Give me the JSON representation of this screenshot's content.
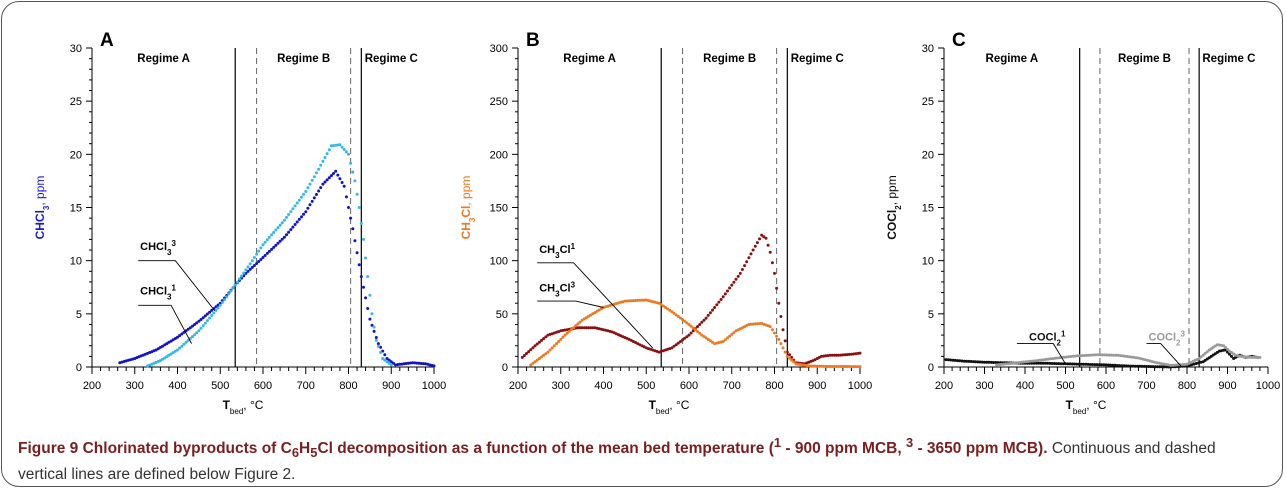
{
  "figure": {
    "caption_bold_html": "Figure 9 Chlorinated byproducts of C<sub>6</sub>H<sub>5</sub>Cl decomposition as a function of the mean bed temperature (<sup>1</sup> - 900 ppm MCB, <sup>3</sup> - 3650 ppm MCB).",
    "caption_rest": " Continuous and dashed vertical lines are defined below Figure 2."
  },
  "chart_data": [
    {
      "type": "scatter",
      "panel_letter": "A",
      "ylabel_html": "CHCl<tspan baseline-shift='sub' font-size='8'>3</tspan>, ppm",
      "ylabel_color": "#1a1ad6",
      "xlabel_html": "T<tspan baseline-shift='sub' font-size='8'>bed</tspan>, °C",
      "xlim": [
        200,
        1000
      ],
      "ylim": [
        0,
        30
      ],
      "xticks": [
        200,
        300,
        400,
        500,
        600,
        700,
        800,
        900,
        1000
      ],
      "yticks": [
        0,
        5,
        10,
        15,
        20,
        25,
        30
      ],
      "regimes": [
        "Regime A",
        "Regime B",
        "Regime C"
      ],
      "solid_lines": [
        535,
        830
      ],
      "dashed_lines": [
        585,
        805
      ],
      "series": [
        {
          "name": "CHCl3 (900 ppm MCB)",
          "color": "#1212c8",
          "points": [
            [
              265,
              0.4
            ],
            [
              300,
              0.8
            ],
            [
              350,
              1.6
            ],
            [
              400,
              2.8
            ],
            [
              450,
              4.3
            ],
            [
              500,
              6.0
            ],
            [
              535,
              7.7
            ],
            [
              560,
              8.8
            ],
            [
              600,
              10.3
            ],
            [
              650,
              12.2
            ],
            [
              700,
              14.6
            ],
            [
              740,
              17.2
            ],
            [
              770,
              18.4
            ],
            [
              790,
              17.0
            ],
            [
              810,
              13.0
            ],
            [
              830,
              8.5
            ],
            [
              850,
              4.5
            ],
            [
              870,
              2.2
            ],
            [
              890,
              0.8
            ],
            [
              910,
              0.2
            ],
            [
              930,
              0.3
            ],
            [
              950,
              0.4
            ],
            [
              980,
              0.3
            ],
            [
              1000,
              0.1
            ]
          ]
        },
        {
          "name": "CHCl3 (3650 ppm MCB)",
          "color": "#33b8ea",
          "points": [
            [
              330,
              0.1
            ],
            [
              360,
              0.6
            ],
            [
              400,
              1.6
            ],
            [
              450,
              3.4
            ],
            [
              500,
              5.8
            ],
            [
              535,
              7.7
            ],
            [
              570,
              9.7
            ],
            [
              600,
              11.5
            ],
            [
              650,
              13.8
            ],
            [
              700,
              16.5
            ],
            [
              730,
              18.6
            ],
            [
              760,
              20.8
            ],
            [
              780,
              20.9
            ],
            [
              800,
              20.0
            ],
            [
              815,
              17.5
            ],
            [
              825,
              15.0
            ],
            [
              835,
              12.0
            ],
            [
              845,
              8.5
            ],
            [
              855,
              5.0
            ],
            [
              865,
              2.5
            ],
            [
              880,
              0.8
            ],
            [
              900,
              0.2
            ]
          ]
        }
      ],
      "annotations": [
        {
          "text_html": "CHCl<tspan baseline-shift='sub' font-size='8'>3</tspan><tspan baseline-shift='super' font-size='8'>3</tspan>",
          "label_x": 308,
          "label_y": 11.0,
          "line": [
            [
              308,
              10.0
            ],
            [
              395,
              10.0
            ],
            [
              487,
              5.3
            ]
          ]
        },
        {
          "text_html": "CHCl<tspan baseline-shift='sub' font-size='8'>3</tspan><tspan baseline-shift='super' font-size='8'>1</tspan>",
          "label_x": 308,
          "label_y": 6.8,
          "line": [
            [
              308,
              5.8
            ],
            [
              385,
              5.8
            ],
            [
              433,
              2.2
            ]
          ]
        }
      ]
    },
    {
      "type": "scatter",
      "panel_letter": "B",
      "ylabel_html": "CH<tspan baseline-shift='sub' font-size='8'>3</tspan>Cl, ppm",
      "ylabel_color": "#f07820",
      "xlabel_html": "T<tspan baseline-shift='sub' font-size='8'>bed</tspan>, °C",
      "xlim": [
        200,
        1000
      ],
      "ylim": [
        0,
        300
      ],
      "xticks": [
        200,
        300,
        400,
        500,
        600,
        700,
        800,
        900,
        1000
      ],
      "yticks": [
        0,
        50,
        100,
        150,
        200,
        250,
        300
      ],
      "regimes": [
        "Regime A",
        "Regime B",
        "Regime C"
      ],
      "solid_lines": [
        535,
        830
      ],
      "dashed_lines": [
        585,
        805
      ],
      "series": [
        {
          "name": "CH3Cl (900 ppm MCB)",
          "color": "#8c1010",
          "points": [
            [
              210,
              9
            ],
            [
              240,
              20
            ],
            [
              270,
              30
            ],
            [
              300,
              34
            ],
            [
              340,
              37
            ],
            [
              380,
              37
            ],
            [
              420,
              33
            ],
            [
              460,
              26
            ],
            [
              500,
              18
            ],
            [
              530,
              14
            ],
            [
              560,
              18
            ],
            [
              600,
              30
            ],
            [
              640,
              46
            ],
            [
              680,
              66
            ],
            [
              720,
              88
            ],
            [
              750,
              110
            ],
            [
              770,
              124
            ],
            [
              780,
              121
            ],
            [
              790,
              108
            ],
            [
              800,
              88
            ],
            [
              810,
              60
            ],
            [
              820,
              35
            ],
            [
              830,
              14
            ],
            [
              850,
              4
            ],
            [
              870,
              3
            ],
            [
              890,
              6
            ],
            [
              910,
              10
            ],
            [
              930,
              11
            ],
            [
              950,
              11
            ],
            [
              980,
              12
            ],
            [
              1000,
              13
            ]
          ]
        },
        {
          "name": "CH3Cl (3650 ppm MCB)",
          "color": "#f07820",
          "points": [
            [
              230,
              2
            ],
            [
              270,
              14
            ],
            [
              310,
              30
            ],
            [
              350,
              44
            ],
            [
              400,
              56
            ],
            [
              450,
              62
            ],
            [
              500,
              63
            ],
            [
              530,
              60
            ],
            [
              560,
              52
            ],
            [
              600,
              40
            ],
            [
              630,
              30
            ],
            [
              660,
              22
            ],
            [
              680,
              24
            ],
            [
              710,
              34
            ],
            [
              740,
              40
            ],
            [
              770,
              41
            ],
            [
              790,
              38
            ],
            [
              810,
              26
            ],
            [
              830,
              10
            ],
            [
              850,
              3
            ],
            [
              880,
              1
            ],
            [
              920,
              0.5
            ],
            [
              960,
              0.5
            ],
            [
              1000,
              0.3
            ]
          ]
        }
      ],
      "annotations": [
        {
          "text_html": "CH<tspan baseline-shift='sub' font-size='8'>3</tspan>Cl<tspan baseline-shift='super' font-size='8'>1</tspan>",
          "label_x": 245,
          "label_y": 107,
          "line": [
            [
              245,
              98
            ],
            [
              330,
              98
            ],
            [
              515,
              18
            ]
          ]
        },
        {
          "text_html": "CH<tspan baseline-shift='sub' font-size='8'>3</tspan>Cl<tspan baseline-shift='super' font-size='8'>3</tspan>",
          "label_x": 245,
          "label_y": 71,
          "line": [
            [
              245,
              62
            ],
            [
              335,
              62
            ],
            [
              400,
              56
            ]
          ]
        }
      ]
    },
    {
      "type": "scatter",
      "panel_letter": "C",
      "ylabel_html": "COCl<tspan baseline-shift='sub' font-size='8'>2</tspan>, ppm",
      "ylabel_color": "#111111",
      "xlabel_html": "T<tspan baseline-shift='sub' font-size='8'>bed</tspan>, °C",
      "xlim": [
        200,
        1000
      ],
      "ylim": [
        0,
        30
      ],
      "xticks": [
        200,
        300,
        400,
        500,
        600,
        700,
        800,
        900,
        1000
      ],
      "yticks": [
        0,
        5,
        10,
        15,
        20,
        25,
        30
      ],
      "regimes": [
        "Regime A",
        "Regime B",
        "Regime C"
      ],
      "solid_lines": [
        535,
        830
      ],
      "dashed_lines": [
        585,
        805
      ],
      "series": [
        {
          "name": "COCl2 (900 ppm MCB)",
          "color": "#111111",
          "points": [
            [
              205,
              0.7
            ],
            [
              250,
              0.55
            ],
            [
              300,
              0.45
            ],
            [
              350,
              0.4
            ],
            [
              400,
              0.35
            ],
            [
              450,
              0.35
            ],
            [
              500,
              0.3
            ],
            [
              550,
              0.25
            ],
            [
              600,
              0.2
            ],
            [
              650,
              0.1
            ],
            [
              700,
              0.05
            ],
            [
              760,
              0.0
            ],
            [
              800,
              0.1
            ],
            [
              840,
              0.5
            ],
            [
              860,
              1.0
            ],
            [
              880,
              1.5
            ],
            [
              895,
              1.6
            ],
            [
              905,
              1.2
            ],
            [
              915,
              0.8
            ],
            [
              930,
              1.1
            ],
            [
              945,
              0.9
            ],
            [
              960,
              1.0
            ],
            [
              975,
              0.9
            ]
          ]
        },
        {
          "name": "COCl2 (3650 ppm MCB)",
          "color": "#9a9a9a",
          "points": [
            [
              330,
              0.2
            ],
            [
              380,
              0.4
            ],
            [
              430,
              0.6
            ],
            [
              480,
              0.85
            ],
            [
              530,
              1.05
            ],
            [
              580,
              1.15
            ],
            [
              630,
              1.1
            ],
            [
              680,
              0.85
            ],
            [
              720,
              0.45
            ],
            [
              760,
              0.15
            ],
            [
              800,
              0.25
            ],
            [
              830,
              0.8
            ],
            [
              855,
              1.6
            ],
            [
              875,
              2.1
            ],
            [
              890,
              2.0
            ],
            [
              905,
              1.5
            ],
            [
              920,
              1.1
            ],
            [
              940,
              0.95
            ],
            [
              960,
              0.9
            ],
            [
              980,
              0.9
            ]
          ]
        }
      ],
      "annotations": [
        {
          "text_html": "COCl<tspan baseline-shift='sub' font-size='8'>2</tspan><tspan baseline-shift='super' font-size='8'>1</tspan>",
          "label_x": 405,
          "label_y": 2.5,
          "line": [
            [
              380,
              2.2
            ],
            [
              470,
              2.2
            ],
            [
              500,
              0.3
            ]
          ],
          "color": "#111111"
        },
        {
          "text_html": "COCl<tspan baseline-shift='sub' font-size='8'>2</tspan><tspan baseline-shift='super' font-size='8'>3</tspan>",
          "label_x": 700,
          "label_y": 2.5,
          "line": [
            [
              700,
              2.2
            ],
            [
              735,
              2.2
            ],
            [
              785,
              0.1
            ]
          ],
          "color": "#9a9a9a"
        }
      ]
    }
  ]
}
